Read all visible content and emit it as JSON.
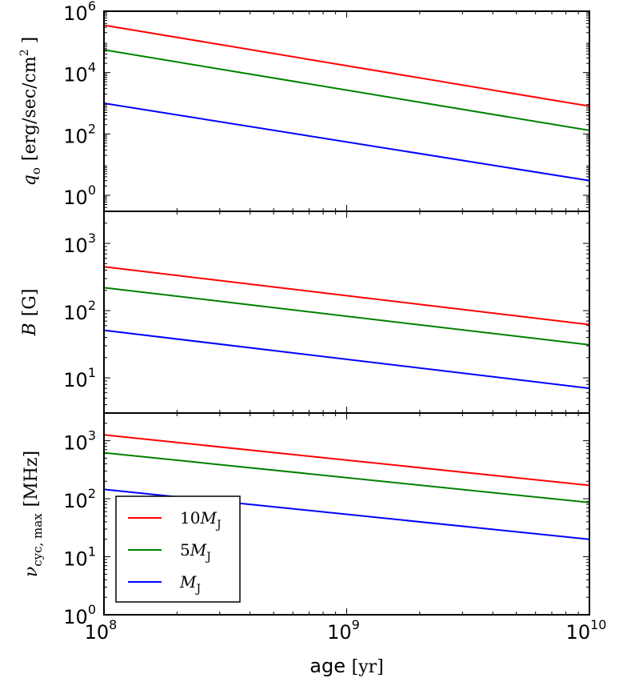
{
  "chart_data": {
    "type": "line",
    "x_scale": "log",
    "xlabel_main": "age",
    "xlabel_unit": "[yr]",
    "xlim": [
      100000000.0,
      10000000000.0
    ],
    "x_ticks": [
      {
        "value": 100000000.0,
        "base": "10",
        "exp": "8"
      },
      {
        "value": 1000000000.0,
        "base": "10",
        "exp": "9"
      },
      {
        "value": 10000000000.0,
        "base": "10",
        "exp": "10"
      }
    ],
    "colors": {
      "10MJ": "#ff0000",
      "5MJ": "#008000",
      "MJ": "#0000ff"
    },
    "legend": {
      "placement": "lower-left of bottom panel",
      "entries": [
        {
          "key": "10MJ",
          "prefix": "10",
          "symbol": "M",
          "sub": "J"
        },
        {
          "key": "5MJ",
          "prefix": "5",
          "symbol": "M",
          "sub": "J"
        },
        {
          "key": "MJ",
          "prefix": "",
          "symbol": "M",
          "sub": "J"
        }
      ]
    },
    "panels": [
      {
        "id": "qo",
        "ylabel": {
          "symbol": "q",
          "sub": "o",
          "unit": "[erg/sec/cm",
          "unit_exp": "2",
          "unit_end": " ]"
        },
        "y_scale": "log",
        "ylim": [
          0.3,
          1000000.0
        ],
        "y_ticks": [
          {
            "value": 1,
            "base": "10",
            "exp": "0"
          },
          {
            "value": 100,
            "base": "10",
            "exp": "2"
          },
          {
            "value": 10000,
            "base": "10",
            "exp": "4"
          },
          {
            "value": 1000000,
            "base": "10",
            "exp": "6"
          }
        ],
        "series": [
          {
            "key": "10MJ",
            "x": [
              100000000.0,
              10000000000.0
            ],
            "y": [
              350000,
              800
            ]
          },
          {
            "key": "5MJ",
            "x": [
              100000000.0,
              10000000000.0
            ],
            "y": [
              55000,
              130
            ]
          },
          {
            "key": "MJ",
            "x": [
              100000000.0,
              10000000000.0
            ],
            "y": [
              1000,
              3
            ]
          }
        ]
      },
      {
        "id": "B",
        "ylabel": {
          "symbol": "B",
          "sub": "",
          "unit": "[G]",
          "unit_exp": "",
          "unit_end": ""
        },
        "y_scale": "log",
        "ylim": [
          3,
          3000
        ],
        "y_ticks": [
          {
            "value": 10,
            "base": "10",
            "exp": "1"
          },
          {
            "value": 100,
            "base": "10",
            "exp": "2"
          },
          {
            "value": 1000,
            "base": "10",
            "exp": "3"
          }
        ],
        "series": [
          {
            "key": "10MJ",
            "x": [
              100000000.0,
              10000000000.0
            ],
            "y": [
              450,
              62
            ]
          },
          {
            "key": "5MJ",
            "x": [
              100000000.0,
              10000000000.0
            ],
            "y": [
              220,
              31
            ]
          },
          {
            "key": "MJ",
            "x": [
              100000000.0,
              10000000000.0
            ],
            "y": [
              51,
              7
            ]
          }
        ]
      },
      {
        "id": "nu",
        "ylabel": {
          "symbol": "ν",
          "sub": "cyc, max",
          "unit": "[MHz]",
          "unit_exp": "",
          "unit_end": ""
        },
        "y_scale": "log",
        "ylim": [
          1,
          3000
        ],
        "y_ticks": [
          {
            "value": 1,
            "base": "10",
            "exp": "0"
          },
          {
            "value": 10,
            "base": "10",
            "exp": "1"
          },
          {
            "value": 100,
            "base": "10",
            "exp": "2"
          },
          {
            "value": 1000,
            "base": "10",
            "exp": "3"
          }
        ],
        "series": [
          {
            "key": "10MJ",
            "x": [
              100000000.0,
              10000000000.0
            ],
            "y": [
              1260,
              170
            ]
          },
          {
            "key": "5MJ",
            "x": [
              100000000.0,
              10000000000.0
            ],
            "y": [
              620,
              86
            ]
          },
          {
            "key": "MJ",
            "x": [
              100000000.0,
              10000000000.0
            ],
            "y": [
              145,
              20
            ]
          }
        ]
      }
    ]
  }
}
